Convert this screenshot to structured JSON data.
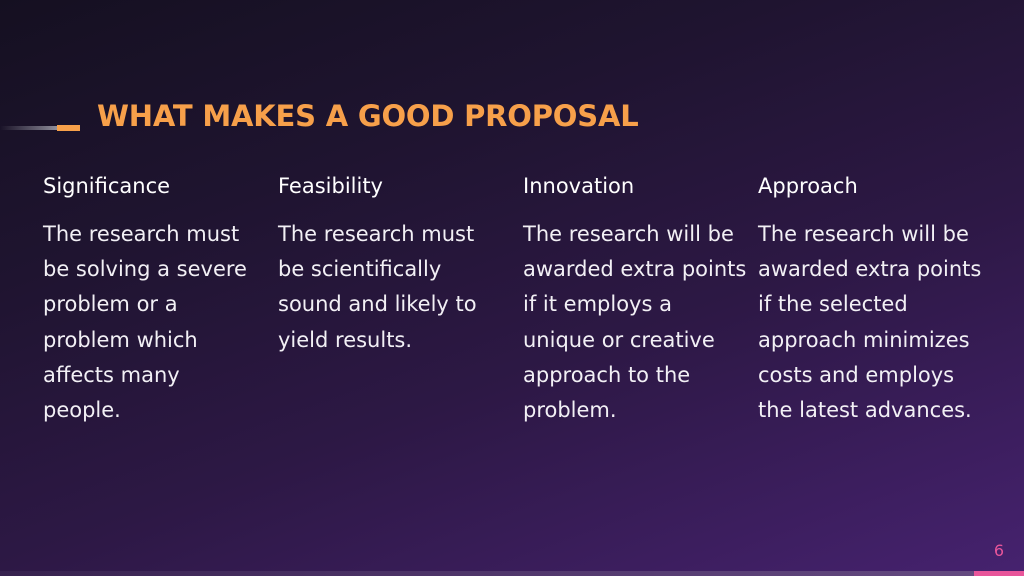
{
  "title": "WHAT MAKES A GOOD PROPOSAL",
  "columns": [
    {
      "heading": "Significance",
      "body": "The research must be solving a severe problem or a problem which affects many people."
    },
    {
      "heading": "Feasibility",
      "body": "The research must be scientifically sound and likely to yield results."
    },
    {
      "heading": "Innovation",
      "body": "The research will be awarded extra points if it employs a unique or creative approach to the problem."
    },
    {
      "heading": "Approach",
      "body": "The research will be awarded extra points if the selected approach minimizes costs and employs the latest advances."
    }
  ],
  "page_number": "6",
  "colors": {
    "accent_orange": "#f7a04a",
    "accent_pink": "#e8559a",
    "text": "#ffffff",
    "background_dark": "#151021",
    "background_purple": "#46226f"
  }
}
